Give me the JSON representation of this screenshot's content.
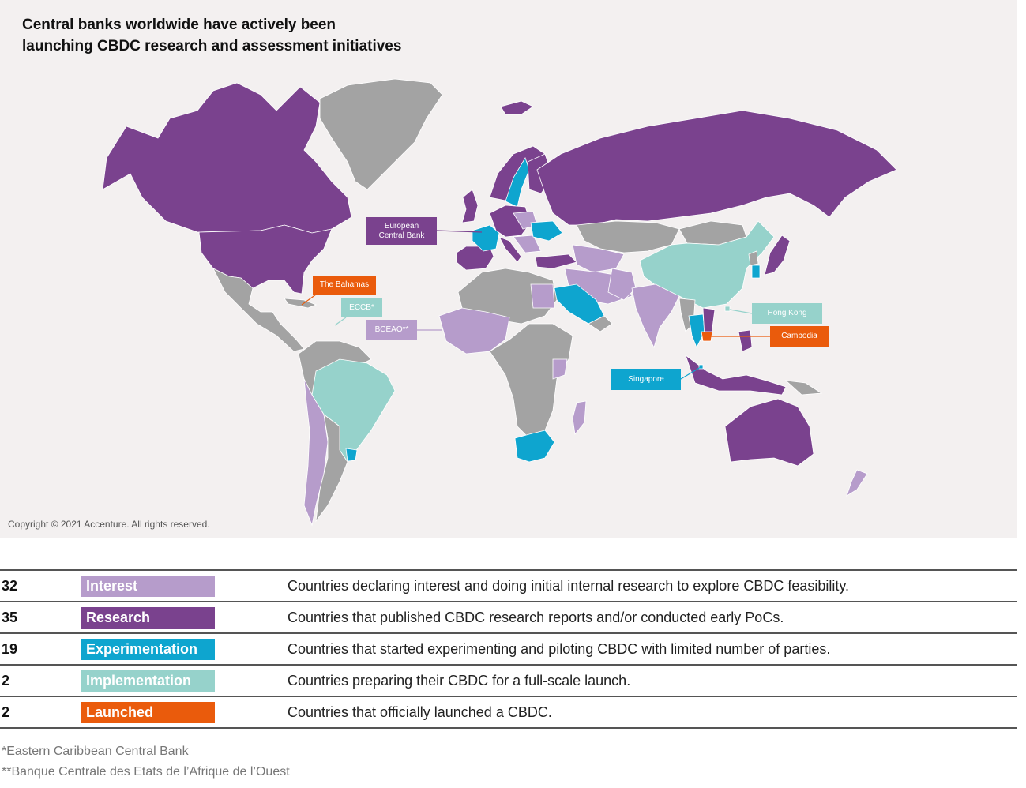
{
  "title": {
    "line1": "Central banks worldwide have actively been",
    "line2": "launching CBDC research and assessment initiatives"
  },
  "copyright": "Copyright © 2021 Accenture. All rights reserved.",
  "colors": {
    "interest": "#b69ccb",
    "research": "#7a428e",
    "experimentation": "#0ea5cf",
    "implementation": "#96d2cb",
    "launched": "#ea5b0c",
    "no_activity": "#a3a3a3",
    "background": "#f3f0f0"
  },
  "callouts": [
    {
      "key": "ecb",
      "line1": "European",
      "line2": "Central Bank",
      "status": "research"
    },
    {
      "key": "bahamas",
      "line1": "The Bahamas",
      "line2": "",
      "status": "launched"
    },
    {
      "key": "eccb",
      "line1": "ECCB*",
      "line2": "",
      "status": "implementation"
    },
    {
      "key": "bceao",
      "line1": "BCEAO**",
      "line2": "",
      "status": "interest"
    },
    {
      "key": "hongkong",
      "line1": "Hong Kong",
      "line2": "",
      "status": "implementation"
    },
    {
      "key": "cambodia",
      "line1": "Cambodia",
      "line2": "",
      "status": "launched"
    },
    {
      "key": "singapore",
      "line1": "Singapore",
      "line2": "",
      "status": "experimentation"
    }
  ],
  "legend": [
    {
      "count": "32",
      "label": "Interest",
      "status": "interest",
      "description": "Countries declaring interest and doing initial internal research to explore CBDC feasibility."
    },
    {
      "count": "35",
      "label": "Research",
      "status": "research",
      "description": "Countries that published CBDC research reports and/or conducted early PoCs."
    },
    {
      "count": "19",
      "label": "Experimentation",
      "status": "experimentation",
      "description": "Countries that started experimenting and piloting CBDC with limited number of parties."
    },
    {
      "count": "2",
      "label": "Implementation",
      "status": "implementation",
      "description": "Countries preparing their CBDC for a full-scale launch."
    },
    {
      "count": "2",
      "label": "Launched",
      "status": "launched",
      "description": "Countries that officially launched a CBDC."
    }
  ],
  "footnotes": [
    "*Eastern Caribbean Central Bank",
    "**Banque Centrale des Etats de l’Afrique de l’Ouest"
  ]
}
